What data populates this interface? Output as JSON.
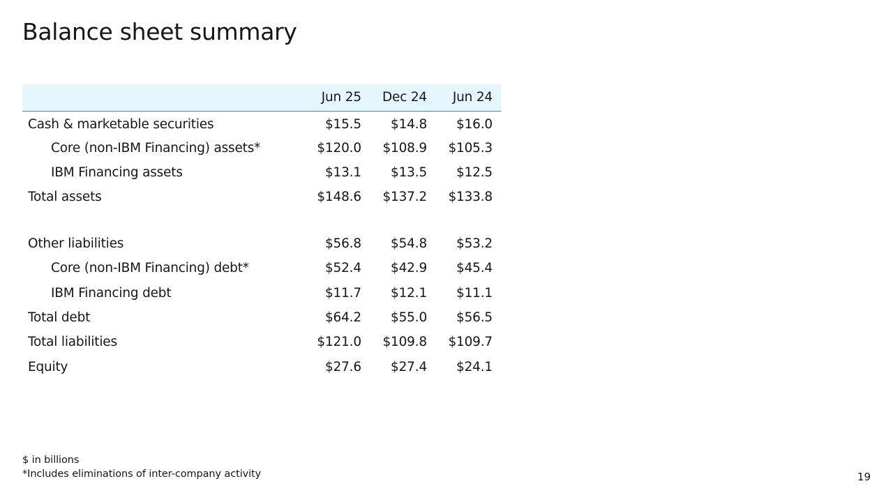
{
  "title": "Balance sheet summary",
  "table": {
    "columns": [
      "",
      "Jun 25",
      "Dec 24",
      "Jun 24"
    ],
    "rows": [
      {
        "label": "Cash & marketable securities",
        "indent": false,
        "values": [
          "$15.5",
          "$14.8",
          "$16.0"
        ]
      },
      {
        "label": "Core (non-IBM Financing) assets*",
        "indent": true,
        "values": [
          "$120.0",
          "$108.9",
          "$105.3"
        ]
      },
      {
        "label": "IBM Financing assets",
        "indent": true,
        "values": [
          "$13.1",
          "$13.5",
          "$12.5"
        ]
      },
      {
        "label": "Total assets",
        "indent": false,
        "values": [
          "$148.6",
          "$137.2",
          "$133.8"
        ]
      },
      {
        "label": "Other liabilities",
        "indent": false,
        "values": [
          "$56.8",
          "$54.8",
          "$53.2"
        ]
      },
      {
        "label": "Core (non-IBM Financing) debt*",
        "indent": true,
        "values": [
          "$52.4",
          "$42.9",
          "$45.4"
        ]
      },
      {
        "label": "IBM Financing debt",
        "indent": true,
        "values": [
          "$11.7",
          "$12.1",
          "$11.1"
        ]
      },
      {
        "label": "Total debt",
        "indent": false,
        "values": [
          "$64.2",
          "$55.0",
          "$56.5"
        ]
      },
      {
        "label": "Total liabilities",
        "indent": false,
        "values": [
          "$121.0",
          "$109.8",
          "$109.7"
        ]
      },
      {
        "label": "Equity",
        "indent": false,
        "values": [
          "$27.6",
          "$27.4",
          "$24.1"
        ]
      }
    ]
  },
  "footnotes": [
    "$ in billions",
    "*Includes eliminations of inter-company activity"
  ],
  "page_number": "19",
  "colors": {
    "header_background": "#e5f6ff",
    "header_rule": "#5a7b92",
    "text": "#161616"
  }
}
